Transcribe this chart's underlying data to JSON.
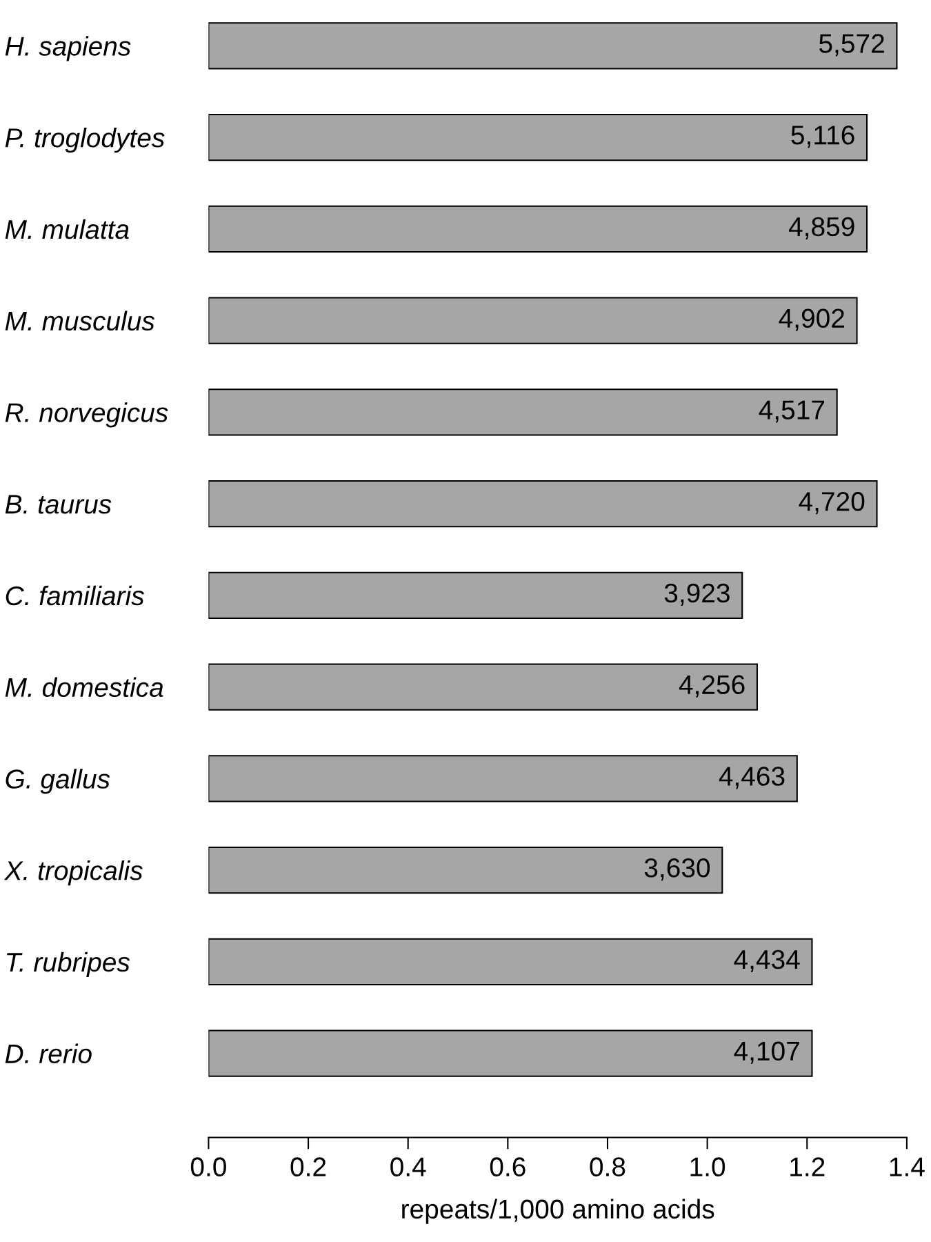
{
  "chart_data": {
    "type": "bar",
    "orientation": "horizontal",
    "xlabel": "repeats/1,000 amino acids",
    "categories": [
      "H. sapiens",
      "P. troglodytes",
      "M. mulatta",
      "M. musculus",
      "R. norvegicus",
      "B. taurus",
      "C. familiaris",
      "M. domestica",
      "G. gallus",
      "X. tropicalis",
      "T. rubripes",
      "D. rerio"
    ],
    "values": [
      1.38,
      1.32,
      1.32,
      1.3,
      1.26,
      1.34,
      1.07,
      1.1,
      1.18,
      1.03,
      1.21,
      1.21
    ],
    "annotations": [
      {
        "text": "5,572",
        "x": 1.38,
        "y": "H. sapiens"
      },
      {
        "text": "5,116",
        "x": 1.32,
        "y": "P. troglodytes"
      },
      {
        "text": "4,859",
        "x": 1.32,
        "y": "M. mulatta"
      },
      {
        "text": "4,902",
        "x": 1.3,
        "y": "M. musculus"
      },
      {
        "text": "4,517",
        "x": 1.26,
        "y": "R. norvegicus"
      },
      {
        "text": "4,720",
        "x": 1.34,
        "y": "B. taurus"
      },
      {
        "text": "3,923",
        "x": 1.07,
        "y": "C. familiaris"
      },
      {
        "text": "4,256",
        "x": 1.1,
        "y": "M. domestica"
      },
      {
        "text": "4,463",
        "x": 1.18,
        "y": "G. gallus"
      },
      {
        "text": "3,630",
        "x": 1.03,
        "y": "X. tropicalis"
      },
      {
        "text": "4,434",
        "x": 1.21,
        "y": "T. rubripes"
      },
      {
        "text": "4,107",
        "x": 1.21,
        "y": "D. rerio"
      }
    ],
    "color": "#a6a6a6",
    "xlim": [
      0,
      1.4
    ],
    "xticks": [
      {
        "value": 0,
        "label": "0.0"
      },
      {
        "value": 0.2,
        "label": "0.2"
      },
      {
        "value": 0.4,
        "label": "0.4"
      },
      {
        "value": 0.6,
        "label": "0.6"
      },
      {
        "value": 0.8,
        "label": "0.8"
      },
      {
        "value": 1.0,
        "label": "1.0"
      },
      {
        "value": 1.2,
        "label": "1.2"
      },
      {
        "value": 1.4,
        "label": "1.4"
      }
    ],
    "grid": false,
    "legend": false
  }
}
